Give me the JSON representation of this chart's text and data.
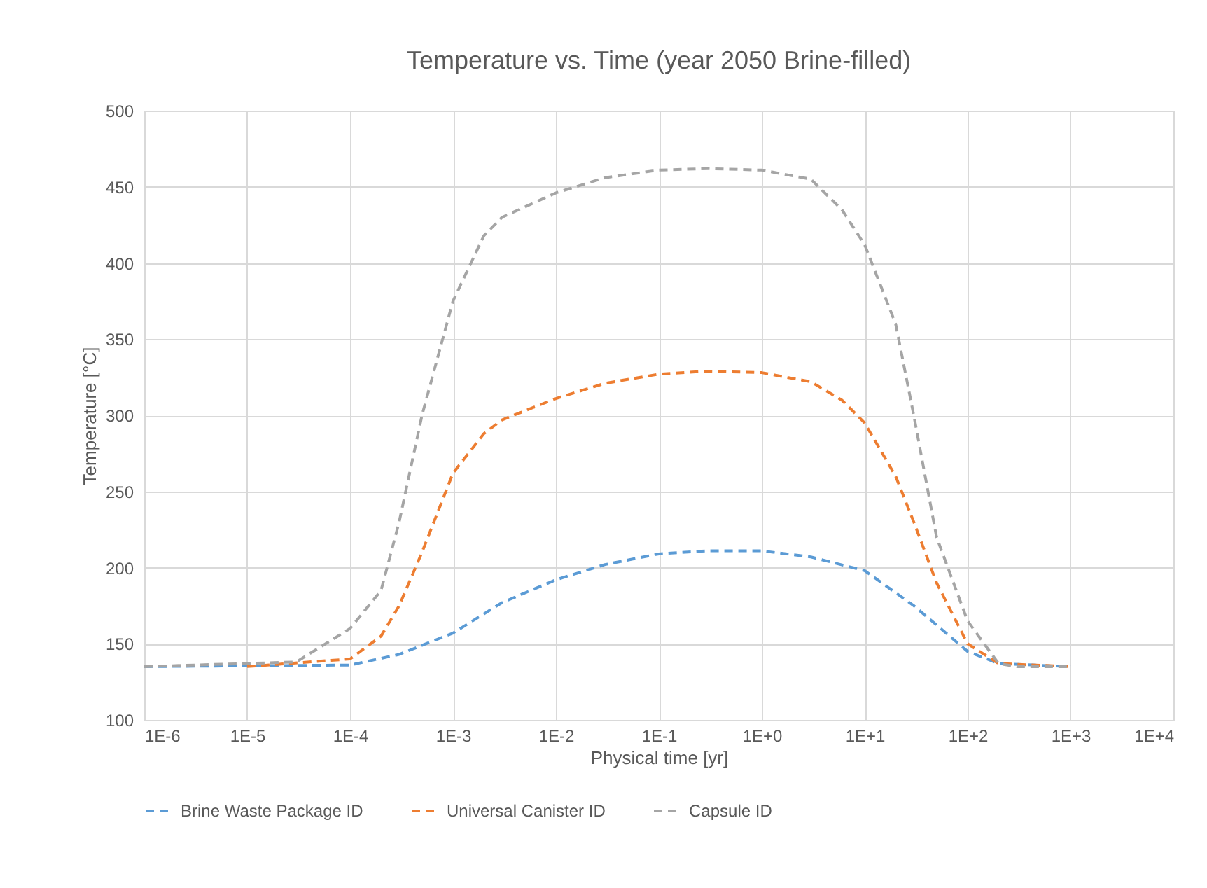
{
  "chart_data": {
    "type": "line",
    "title": "Temperature vs. Time (year 2050 Brine-filled)",
    "xlabel": "Physical time [yr]",
    "ylabel": "Temperature [°C]",
    "log": "x",
    "grid": true,
    "legend": "bottom",
    "line_style": "dashed",
    "marker": "none",
    "xlim": [
      1e-06,
      10000
    ],
    "xticks": [
      {
        "value": 1e-06,
        "label": "1E-6"
      },
      {
        "value": 1e-05,
        "label": "1E-5"
      },
      {
        "value": 0.0001,
        "label": "1E-4"
      },
      {
        "value": 0.001,
        "label": "1E-3"
      },
      {
        "value": 0.01,
        "label": "1E-2"
      },
      {
        "value": 0.1,
        "label": "1E-1"
      },
      {
        "value": 1,
        "label": "1E+0"
      },
      {
        "value": 10,
        "label": "1E+1"
      },
      {
        "value": 100,
        "label": "1E+2"
      },
      {
        "value": 1000,
        "label": "1E+3"
      },
      {
        "value": 10000,
        "label": "1E+4"
      }
    ],
    "ylim": [
      100,
      500
    ],
    "yticks": [
      100,
      150,
      200,
      250,
      300,
      350,
      400,
      450,
      500
    ],
    "series": [
      {
        "name": "Brine Waste Package ID",
        "color": "#5b9bd5",
        "x": [
          1e-06,
          0.0001,
          0.0003,
          0.001,
          0.003,
          0.01,
          0.03,
          0.1,
          0.3,
          1,
          3,
          10,
          30,
          100,
          200,
          1000
        ],
        "values": [
          135,
          136,
          143,
          157,
          177,
          192,
          202,
          209,
          211,
          211,
          207,
          198,
          175,
          145,
          137,
          135
        ]
      },
      {
        "name": "Universal Canister ID",
        "color": "#ed7d31",
        "x": [
          1e-05,
          0.0001,
          0.0002,
          0.0003,
          0.0005,
          0.001,
          0.002,
          0.003,
          0.01,
          0.03,
          0.1,
          0.3,
          1,
          3,
          6,
          10,
          20,
          30,
          50,
          100,
          200,
          1000
        ],
        "values": [
          135,
          140,
          155,
          175,
          210,
          262,
          288,
          297,
          311,
          321,
          327,
          329,
          328,
          322,
          310,
          295,
          260,
          230,
          190,
          150,
          137,
          135
        ]
      },
      {
        "name": "Capsule ID",
        "color": "#a5a5a5",
        "x": [
          1e-06,
          3e-05,
          0.0001,
          0.0002,
          0.0003,
          0.0005,
          0.001,
          0.002,
          0.003,
          0.01,
          0.03,
          0.1,
          0.3,
          1,
          3,
          6,
          10,
          20,
          30,
          50,
          100,
          200,
          300,
          1000
        ],
        "values": [
          135,
          138,
          160,
          185,
          230,
          300,
          375,
          418,
          430,
          446,
          456,
          461,
          462,
          461,
          455,
          435,
          412,
          360,
          300,
          220,
          165,
          137,
          135,
          135
        ]
      }
    ]
  }
}
